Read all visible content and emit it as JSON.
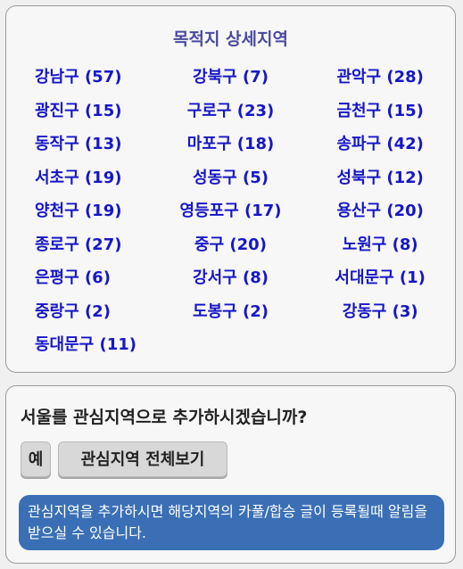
{
  "districts_panel": {
    "title": "목적지 상세지역",
    "items": [
      {
        "label": "강남구 (57)"
      },
      {
        "label": "강북구 (7)"
      },
      {
        "label": "관악구 (28)"
      },
      {
        "label": "광진구 (15)"
      },
      {
        "label": "구로구 (23)"
      },
      {
        "label": "금천구 (15)"
      },
      {
        "label": "동작구 (13)"
      },
      {
        "label": "마포구 (18)"
      },
      {
        "label": "송파구 (42)"
      },
      {
        "label": "서초구 (19)"
      },
      {
        "label": "성동구 (5)"
      },
      {
        "label": "성북구 (12)"
      },
      {
        "label": "양천구 (19)"
      },
      {
        "label": "영등포구 (17)"
      },
      {
        "label": "용산구 (20)"
      },
      {
        "label": "종로구 (27)"
      },
      {
        "label": "중구 (20)"
      },
      {
        "label": "노원구 (8)"
      },
      {
        "label": "은평구 (6)"
      },
      {
        "label": "강서구 (8)"
      },
      {
        "label": "서대문구 (1)"
      },
      {
        "label": "중랑구 (2)"
      },
      {
        "label": "도봉구 (2)"
      },
      {
        "label": "강동구 (3)"
      },
      {
        "label": "동대문구 (11)"
      }
    ]
  },
  "add_panel": {
    "question": "서울를 관심지역으로 추가하시겠습니까?",
    "yes_label": "예",
    "view_all_label": "관심지역 전체보기",
    "notice": "관심지역을 추가하시면 해당지역의 카풀/합승 글이 등록될때 알림을 받으실 수 있습니다."
  },
  "colors": {
    "title": "#4a4aa0",
    "link": "#1616c8",
    "notice_bg": "#3a6fb5"
  }
}
